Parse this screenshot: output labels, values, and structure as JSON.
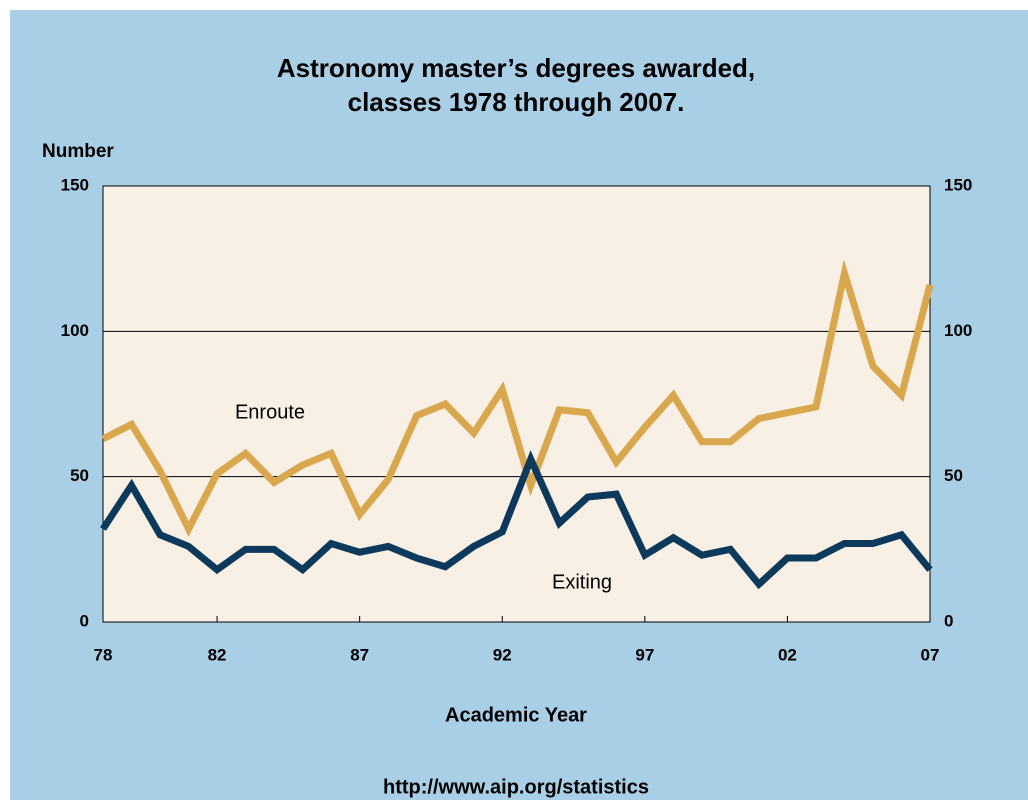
{
  "chart_data": {
    "type": "line",
    "title": [
      "Astronomy master’s degrees awarded,",
      "classes 1978 through 2007."
    ],
    "y_label": "Number",
    "x_label": "Academic Year",
    "source": "http://www.aip.org/statistics",
    "categories": [
      "78",
      null,
      null,
      null,
      "82",
      null,
      null,
      null,
      null,
      "87",
      null,
      null,
      null,
      null,
      "92",
      null,
      null,
      null,
      null,
      "97",
      null,
      null,
      null,
      null,
      "02",
      null,
      null,
      null,
      null,
      "07"
    ],
    "series": [
      {
        "name": "Enroute",
        "color": "#d9a84e",
        "values": [
          63,
          68,
          52,
          32,
          51,
          58,
          48,
          54,
          58,
          37,
          49,
          71,
          75,
          65,
          80,
          47,
          73,
          72,
          55,
          67,
          78,
          62,
          62,
          70,
          72,
          74,
          120,
          88,
          78,
          116
        ]
      },
      {
        "name": "Exiting",
        "color": "#0d3a5c",
        "values": [
          32,
          47,
          30,
          26,
          18,
          25,
          25,
          18,
          27,
          24,
          26,
          22,
          19,
          26,
          31,
          56,
          34,
          43,
          44,
          23,
          29,
          23,
          25,
          13,
          22,
          22,
          27,
          27,
          30,
          18
        ]
      }
    ],
    "ylim": [
      0,
      150
    ],
    "yticks": [
      0,
      50,
      100,
      150
    ],
    "y2lim": [
      0,
      150
    ],
    "y2ticks": [
      0,
      50,
      100,
      150
    ],
    "grid": true
  }
}
